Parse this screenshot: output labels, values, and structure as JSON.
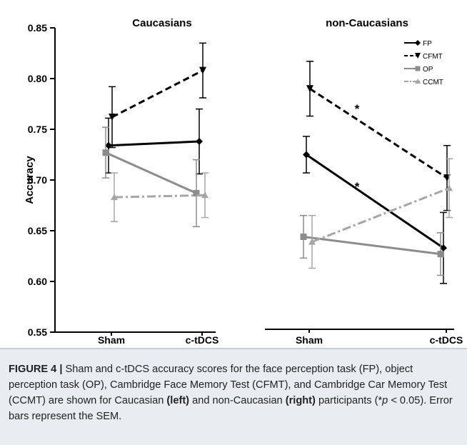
{
  "chart_data": [
    {
      "type": "line",
      "title": "Caucasians",
      "ylabel": "Accuracy",
      "xlabel": "",
      "categories": [
        "Sham",
        "c-tDCS"
      ],
      "ylim": [
        0.55,
        0.85
      ],
      "yticks": [
        "0.55",
        "0.60",
        "0.65",
        "0.70",
        "0.75",
        "0.80",
        "0.85"
      ],
      "series": [
        {
          "name": "FP",
          "values": [
            0.734,
            0.738
          ],
          "errors": [
            0.027,
            0.032
          ],
          "color": "#000000",
          "style": "solid",
          "marker": "diamond"
        },
        {
          "name": "CFMT",
          "values": [
            0.762,
            0.808
          ],
          "errors": [
            0.03,
            0.027
          ],
          "color": "#000000",
          "style": "dashed",
          "marker": "triangle-down"
        },
        {
          "name": "OP",
          "values": [
            0.727,
            0.687
          ],
          "errors": [
            0.025,
            0.033
          ],
          "color": "#8c8c8c",
          "style": "solid",
          "marker": "square"
        },
        {
          "name": "CCMT",
          "values": [
            0.683,
            0.685
          ],
          "errors": [
            0.024,
            0.022
          ],
          "color": "#a6a6a6",
          "style": "dashdot",
          "marker": "triangle-up"
        }
      ]
    },
    {
      "type": "line",
      "title": "non-Caucasians",
      "xlabel": "",
      "categories": [
        "Sham",
        "c-tDCS"
      ],
      "ylim": [
        0.55,
        0.85
      ],
      "annotations": [
        "*",
        "*"
      ],
      "legend_position": "top-right",
      "series": [
        {
          "name": "FP",
          "values": [
            0.725,
            0.633
          ],
          "errors": [
            0.018,
            0.035
          ],
          "color": "#000000",
          "style": "solid",
          "marker": "diamond"
        },
        {
          "name": "CFMT",
          "values": [
            0.79,
            0.702
          ],
          "errors": [
            0.027,
            0.032
          ],
          "color": "#000000",
          "style": "dashed",
          "marker": "triangle-down"
        },
        {
          "name": "OP",
          "values": [
            0.644,
            0.627
          ],
          "errors": [
            0.021,
            0.021
          ],
          "color": "#8c8c8c",
          "style": "solid",
          "marker": "square"
        },
        {
          "name": "CCMT",
          "values": [
            0.639,
            0.692
          ],
          "errors": [
            0.026,
            0.029
          ],
          "color": "#a6a6a6",
          "style": "dashdot",
          "marker": "triangle-up"
        }
      ]
    }
  ],
  "caption": {
    "label": "FIGURE 4 |",
    "text_1": " Sham and c-tDCS accuracy scores for the face perception task (FP), object perception task (OP), Cambridge Face Memory Test (CFMT), and Cambridge Car Memory Test (CCMT) are shown for Caucasian ",
    "left": "(left)",
    "text_2": " and non-Caucasian ",
    "right": "(right)",
    "text_3": " participants (*",
    "p": "p",
    "text_4": " < 0.05). Error bars represent the SEM."
  }
}
